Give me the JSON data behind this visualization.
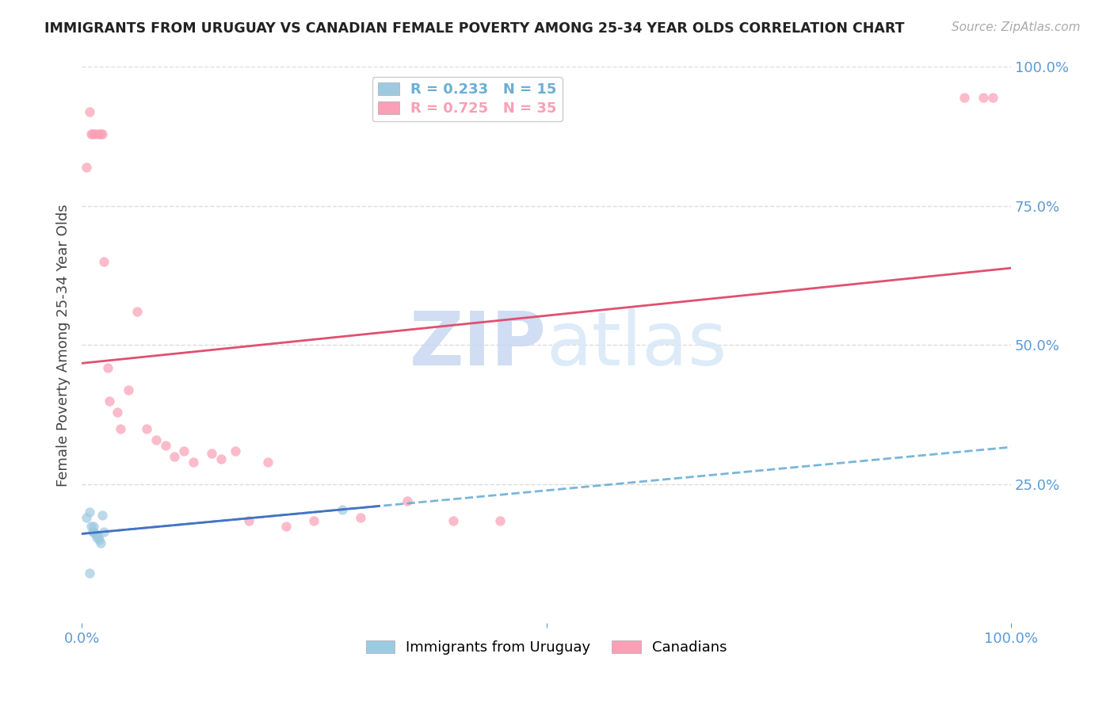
{
  "title": "IMMIGRANTS FROM URUGUAY VS CANADIAN FEMALE POVERTY AMONG 25-34 YEAR OLDS CORRELATION CHART",
  "source": "Source: ZipAtlas.com",
  "ylabel": "Female Poverty Among 25-34 Year Olds",
  "watermark_zip": "ZIP",
  "watermark_atlas": "atlas",
  "legend_entries": [
    {
      "label": "Immigrants from Uruguay",
      "color": "#6baed6",
      "R": 0.233,
      "N": 15
    },
    {
      "label": "Canadians",
      "color": "#fa9fb5",
      "R": 0.725,
      "N": 35
    }
  ],
  "xlim": [
    0,
    1.0
  ],
  "ylim": [
    0,
    1.0
  ],
  "ytick_labels": [
    "100.0%",
    "75.0%",
    "50.0%",
    "25.0%"
  ],
  "ytick_positions": [
    1.0,
    0.75,
    0.5,
    0.25
  ],
  "grid_color": "#dddddd",
  "axis_label_color": "#5b9bd5",
  "uruguay_scatter_x": [
    0.005,
    0.008,
    0.01,
    0.012,
    0.013,
    0.013,
    0.015,
    0.016,
    0.018,
    0.019,
    0.02,
    0.022,
    0.024,
    0.28,
    0.008
  ],
  "uruguay_scatter_y": [
    0.19,
    0.2,
    0.175,
    0.165,
    0.175,
    0.165,
    0.16,
    0.155,
    0.155,
    0.15,
    0.145,
    0.195,
    0.165,
    0.205,
    0.09
  ],
  "canada_scatter_x": [
    0.005,
    0.008,
    0.01,
    0.012,
    0.014,
    0.018,
    0.02,
    0.022,
    0.024,
    0.028,
    0.03,
    0.038,
    0.042,
    0.05,
    0.06,
    0.07,
    0.08,
    0.09,
    0.1,
    0.11,
    0.12,
    0.14,
    0.15,
    0.165,
    0.18,
    0.2,
    0.22,
    0.25,
    0.3,
    0.35,
    0.4,
    0.45,
    0.95,
    0.97,
    0.98
  ],
  "canada_scatter_y": [
    0.82,
    0.92,
    0.88,
    0.88,
    0.88,
    0.88,
    0.88,
    0.88,
    0.65,
    0.46,
    0.4,
    0.38,
    0.35,
    0.42,
    0.56,
    0.35,
    0.33,
    0.32,
    0.3,
    0.31,
    0.29,
    0.305,
    0.295,
    0.31,
    0.185,
    0.29,
    0.175,
    0.185,
    0.19,
    0.22,
    0.185,
    0.185,
    0.945,
    0.945,
    0.945
  ],
  "blue_line_color": "#4472c4",
  "blue_dash_color": "#6baed6",
  "pink_line_color": "#e05070",
  "scatter_uruguay_color": "#9ecae1",
  "scatter_canada_color": "#fa9fb5",
  "scatter_size": 80,
  "scatter_alpha": 0.7,
  "bg_color": "#ffffff"
}
